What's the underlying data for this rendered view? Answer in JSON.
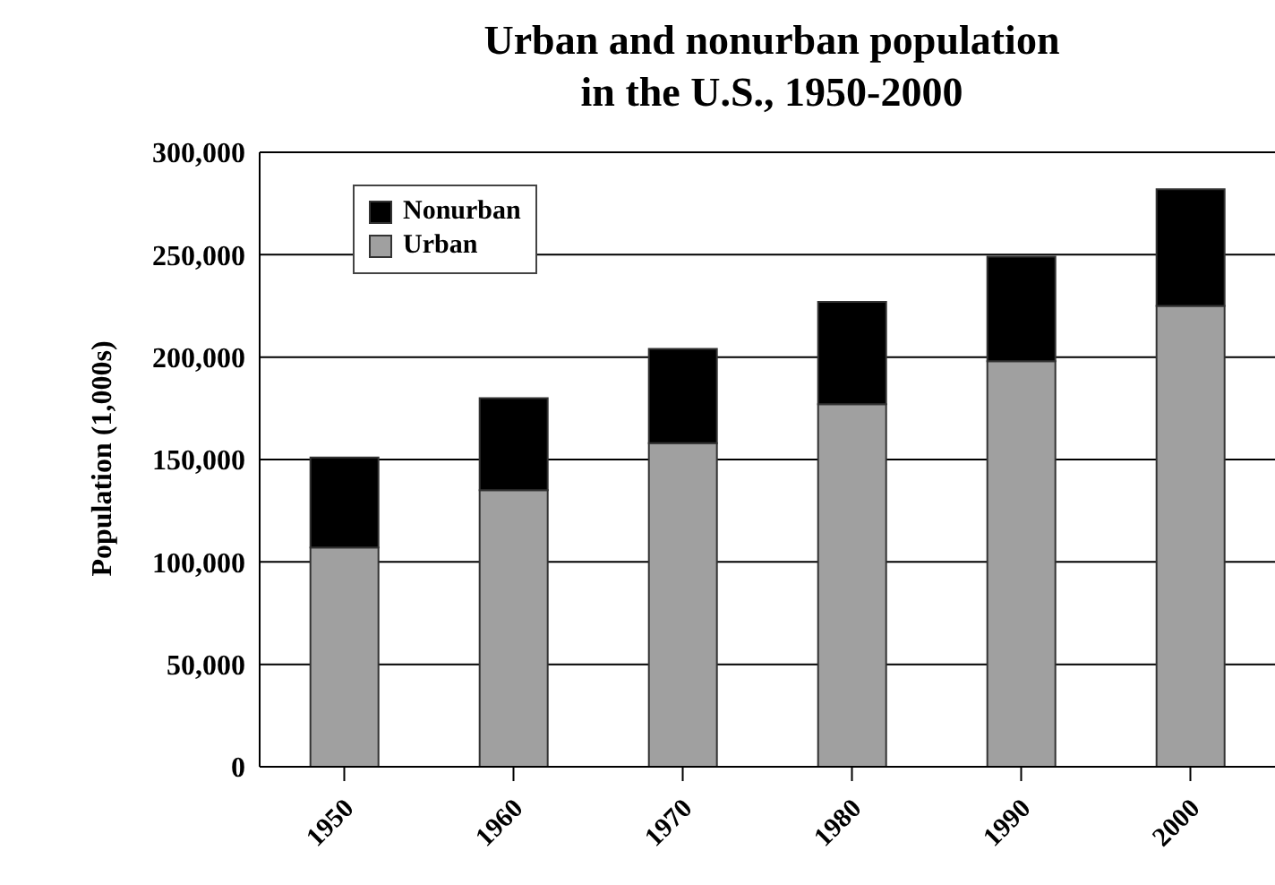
{
  "chart_data": {
    "type": "bar",
    "title": "Urban and nonurban population\nin the U.S., 1950-2000",
    "ylabel": "Population (1,000s)",
    "categories": [
      "1950",
      "1960",
      "1970",
      "1980",
      "1990",
      "2000"
    ],
    "stacked": true,
    "series": [
      {
        "name": "Urban",
        "color": "#a0a0a0",
        "values": [
          107000,
          135000,
          158000,
          177000,
          198000,
          225000
        ]
      },
      {
        "name": "Nonurban",
        "color": "#000000",
        "values": [
          44000,
          45000,
          46000,
          50000,
          51000,
          57000
        ]
      }
    ],
    "ylim": [
      0,
      300000
    ],
    "yticks": [
      0,
      {
        "value": 50000,
        "label": "50,000"
      },
      {
        "value": 100000,
        "label": "100,000"
      },
      {
        "value": 150000,
        "label": "150,000"
      },
      {
        "value": 200000,
        "label": "200,000"
      },
      {
        "value": 250000,
        "label": "250,000"
      },
      {
        "value": 300000,
        "label": "300,000"
      }
    ],
    "grid": "y",
    "legend": "top left"
  }
}
